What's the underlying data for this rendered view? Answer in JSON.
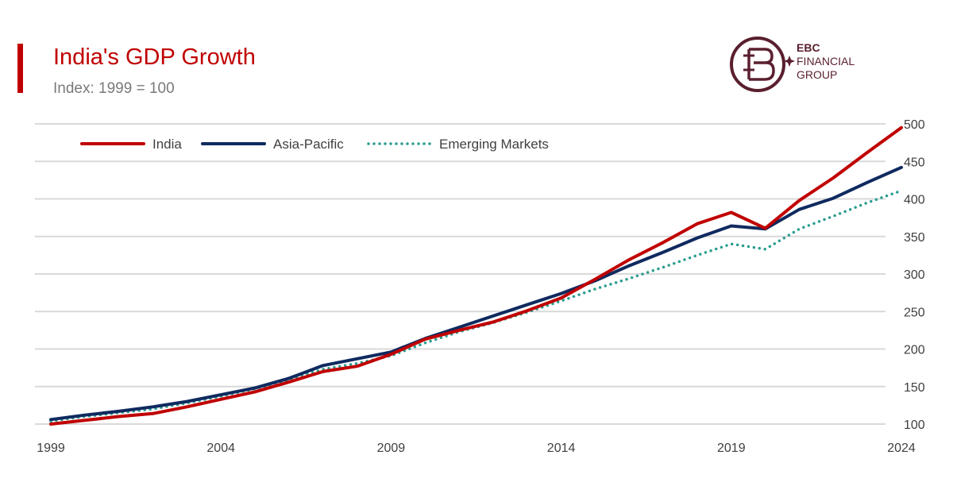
{
  "header": {
    "title": "India's GDP Growth",
    "subtitle": "Index: 1999 = 100"
  },
  "logo": {
    "brand": "EBC",
    "line2": "FINANCIAL",
    "line3": "GROUP",
    "color": "#5a1f2e"
  },
  "colors": {
    "accent": "#c00000",
    "india": "#c00000",
    "asia_pacific": "#0f2a5f",
    "emerging_markets": "#2a9d8f",
    "grid": "#d9d9d9",
    "tick": "#404040"
  },
  "chart_data": {
    "type": "line",
    "title": "India's GDP Growth",
    "subtitle": "Index: 1999 = 100",
    "xlabel": "",
    "ylabel": "",
    "x": [
      1999,
      2000,
      2001,
      2002,
      2003,
      2004,
      2005,
      2006,
      2007,
      2008,
      2009,
      2010,
      2011,
      2012,
      2013,
      2014,
      2015,
      2016,
      2017,
      2018,
      2019,
      2020,
      2021,
      2022,
      2023,
      2024
    ],
    "x_ticks": [
      "1999",
      "2004",
      "2009",
      "2014",
      "2019",
      "2024"
    ],
    "y_ticks": [
      "100",
      "150",
      "200",
      "250",
      "300",
      "350",
      "400",
      "450",
      "500"
    ],
    "ylim": [
      100,
      500
    ],
    "y_axis_position": "right",
    "grid": true,
    "legend_position": "top-left",
    "series": [
      {
        "name": "India",
        "style": "solid",
        "values": [
          100,
          105,
          110,
          114,
          123,
          133,
          143,
          156,
          170,
          177,
          193,
          213,
          225,
          236,
          251,
          268,
          293,
          319,
          342,
          367,
          382,
          361,
          398,
          428,
          462,
          495
        ]
      },
      {
        "name": "Asia-Pacific",
        "style": "solid",
        "values": [
          106,
          112,
          117,
          123,
          130,
          139,
          148,
          161,
          178,
          187,
          196,
          214,
          229,
          244,
          259,
          274,
          291,
          311,
          329,
          348,
          364,
          360,
          386,
          401,
          422,
          442
        ]
      },
      {
        "name": "Emerging Markets",
        "style": "dotted",
        "values": [
          104,
          110,
          115,
          120,
          128,
          137,
          147,
          159,
          173,
          181,
          191,
          208,
          223,
          235,
          249,
          264,
          280,
          294,
          309,
          325,
          340,
          333,
          360,
          377,
          395,
          411
        ]
      }
    ]
  }
}
